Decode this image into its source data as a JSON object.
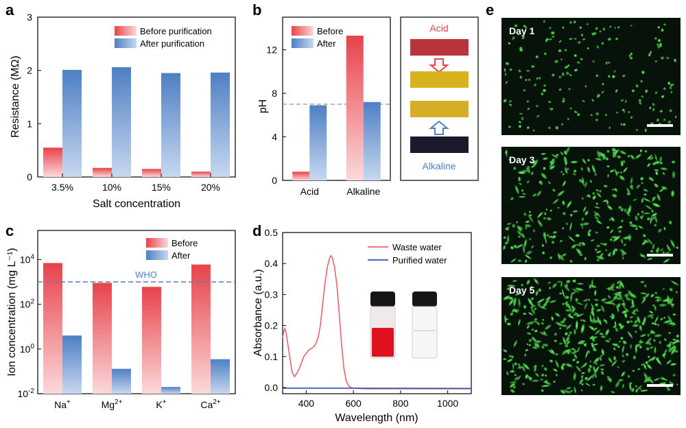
{
  "colors": {
    "red": "#e8424a",
    "red_light": "#fbd9da",
    "blue": "#4e7fc4",
    "blue_light": "#c7d8ef",
    "micro_bg": "#07120a",
    "cell": "#46d34a",
    "scale_bar": "#ffffff"
  },
  "panels": {
    "a": "a",
    "b": "b",
    "c": "c",
    "d": "d",
    "e": "e"
  },
  "panel_a": {
    "type": "bar",
    "ylabel": "Resistance (MΩ)",
    "xlabel": "Salt concentration",
    "categories": [
      "3.5%",
      "10%",
      "15%",
      "20%"
    ],
    "ylim": [
      0,
      3
    ],
    "yticks": [
      "0",
      "1",
      "2",
      "3"
    ],
    "series": [
      {
        "name": "Before purification",
        "values": [
          0.55,
          0.17,
          0.15,
          0.1
        ]
      },
      {
        "name": "After purification",
        "values": [
          2.01,
          2.06,
          1.95,
          1.96
        ]
      }
    ]
  },
  "panel_b": {
    "type": "bar",
    "ylabel": "pH",
    "categories": [
      "Acid",
      "Alkaline"
    ],
    "ylim": [
      0,
      15
    ],
    "yticks": [
      "0",
      "4",
      "8",
      "12"
    ],
    "reference_line": 7,
    "series": [
      {
        "name": "Before",
        "values": [
          0.8,
          13.3
        ]
      },
      {
        "name": "After",
        "values": [
          6.9,
          7.2
        ]
      }
    ],
    "strip_labels": {
      "top": "Acid",
      "bottom": "Alkaline"
    },
    "strip_colors": [
      "#b8343b",
      "#d6b31f",
      "#d4ae27",
      "#1b1a2b"
    ]
  },
  "panel_c": {
    "type": "bar",
    "ylabel": "Ion concentration (mg L⁻¹)",
    "categories": [
      {
        "base": "Na",
        "sup": "+"
      },
      {
        "base": "Mg",
        "sup": "2+"
      },
      {
        "base": "K",
        "sup": "+"
      },
      {
        "base": "Ca",
        "sup": "2+"
      }
    ],
    "yscale": "log",
    "ylim": [
      0.01,
      200000
    ],
    "yticks": [
      {
        "base": "10",
        "sup": "-2"
      },
      {
        "base": "10",
        "sup": "0"
      },
      {
        "base": "10",
        "sup": "2"
      },
      {
        "base": "10",
        "sup": "4"
      }
    ],
    "reference": {
      "label": "WHO",
      "value": 1000
    },
    "series": [
      {
        "name": "Before",
        "values": [
          7000,
          900,
          600,
          6000
        ]
      },
      {
        "name": "After",
        "values": [
          4,
          0.13,
          0.02,
          0.35
        ]
      }
    ]
  },
  "panel_d": {
    "type": "line",
    "ylabel": "Absorbance (a.u.)",
    "xlabel": "Wavelength (nm)",
    "xlim": [
      300,
      1100
    ],
    "ylim": [
      -0.02,
      0.5
    ],
    "xticks": [
      "400",
      "600",
      "800",
      "1000"
    ],
    "yticks": [
      "0.0",
      "0.1",
      "0.2",
      "0.3",
      "0.4",
      "0.5"
    ],
    "series": [
      {
        "name": "Waste water",
        "x": [
          300,
          305,
          310,
          315,
          320,
          330,
          340,
          350,
          360,
          370,
          380,
          390,
          400,
          410,
          420,
          430,
          440,
          450,
          460,
          470,
          480,
          490,
          500,
          505,
          510,
          520,
          530,
          540,
          550,
          560,
          570,
          580,
          590,
          600,
          620,
          650,
          700,
          800,
          900,
          1000,
          1100
        ],
        "y": [
          0.16,
          0.18,
          0.19,
          0.175,
          0.15,
          0.1,
          0.05,
          0.035,
          0.045,
          0.06,
          0.08,
          0.1,
          0.11,
          0.12,
          0.125,
          0.13,
          0.14,
          0.16,
          0.2,
          0.27,
          0.34,
          0.39,
          0.42,
          0.425,
          0.42,
          0.39,
          0.33,
          0.24,
          0.14,
          0.06,
          0.02,
          0.005,
          0,
          -0.002,
          -0.003,
          -0.004,
          -0.004,
          -0.004,
          -0.004,
          -0.004,
          -0.004
        ]
      },
      {
        "name": "Purified water",
        "x": [
          300,
          600,
          1100
        ],
        "y": [
          -0.002,
          -0.002,
          -0.003
        ]
      }
    ]
  },
  "panel_e": {
    "images": [
      {
        "label": "Day 1",
        "density": 190
      },
      {
        "label": "Day 3",
        "density": 330
      },
      {
        "label": "Day 5",
        "density": 480
      }
    ]
  }
}
